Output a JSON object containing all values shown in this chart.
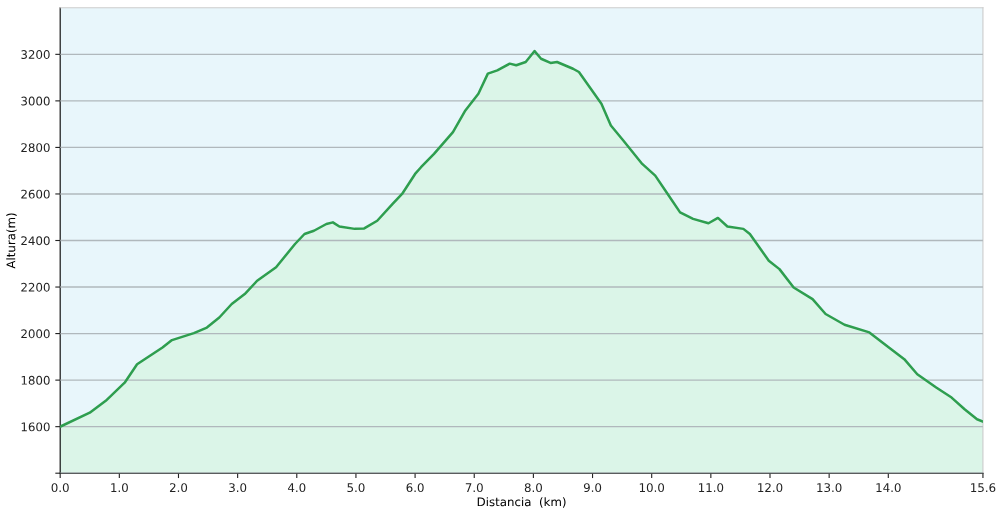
{
  "chart_data": {
    "type": "area",
    "xlabel": "Distancia  (km)",
    "ylabel": "Altura(m)",
    "xlim": [
      0,
      15.6
    ],
    "xticks": [
      {
        "value": 0,
        "label": "0.0"
      },
      {
        "value": 1,
        "label": "1.0"
      },
      {
        "value": 2,
        "label": "2.0"
      },
      {
        "value": 3,
        "label": "3.0"
      },
      {
        "value": 4,
        "label": "4.0"
      },
      {
        "value": 5,
        "label": "5.0"
      },
      {
        "value": 6,
        "label": "6.0"
      },
      {
        "value": 7,
        "label": "7.0"
      },
      {
        "value": 8,
        "label": "8.0"
      },
      {
        "value": 9,
        "label": "9.0"
      },
      {
        "value": 10,
        "label": "10.0"
      },
      {
        "value": 11,
        "label": "11.0"
      },
      {
        "value": 12,
        "label": "12.0"
      },
      {
        "value": 13,
        "label": "13.0"
      },
      {
        "value": 14,
        "label": "14.0"
      },
      {
        "value": 15.6,
        "label": "15.6"
      }
    ],
    "ylim": [
      1400,
      3400
    ],
    "yticks": [
      {
        "value": 1400,
        "label": null
      },
      1600,
      1800,
      2000,
      2200,
      2400,
      2600,
      2800,
      3000,
      3200
    ],
    "grid": "y",
    "legend": false,
    "series": [
      {
        "color": "#2e9e4f",
        "x": [
          0,
          0.5,
          0.77,
          1.09,
          1.3,
          1.73,
          1.89,
          2.26,
          2.48,
          2.69,
          2.9,
          3.12,
          3.33,
          3.49,
          3.65,
          3.97,
          4.13,
          4.29,
          4.5,
          4.61,
          4.72,
          4.98,
          5.14,
          5.36,
          5.62,
          5.78,
          6.0,
          6.1,
          6.32,
          6.64,
          6.85,
          7.07,
          7.23,
          7.39,
          7.6,
          7.71,
          7.87,
          8.02,
          8.13,
          8.29,
          8.4,
          8.67,
          8.77,
          9.15,
          9.31,
          9.52,
          9.84,
          10.06,
          10.27,
          10.48,
          10.7,
          10.96,
          11.12,
          11.28,
          11.55,
          11.66,
          11.98,
          12.16,
          12.4,
          12.72,
          12.94,
          13.26,
          13.68,
          14.01,
          14.27,
          14.49,
          14.81,
          15.07,
          15.29,
          15.5,
          15.6
        ],
        "values": [
          1600,
          1660,
          1711,
          1789,
          1868,
          1940,
          1972,
          2002,
          2026,
          2069,
          2127,
          2170,
          2227,
          2256,
          2285,
          2385,
          2428,
          2442,
          2471,
          2478,
          2460,
          2450,
          2452,
          2485,
          2557,
          2600,
          2686,
          2715,
          2772,
          2866,
          2959,
          3031,
          3117,
          3131,
          3160,
          3153,
          3167,
          3214,
          3181,
          3163,
          3167,
          3138,
          3124,
          2988,
          2894,
          2830,
          2729,
          2679,
          2600,
          2521,
          2493,
          2474,
          2497,
          2460,
          2450,
          2428,
          2313,
          2277,
          2198,
          2148,
          2084,
          2038,
          2005,
          1940,
          1890,
          1825,
          1768,
          1725,
          1675,
          1632,
          1622
        ]
      }
    ]
  }
}
